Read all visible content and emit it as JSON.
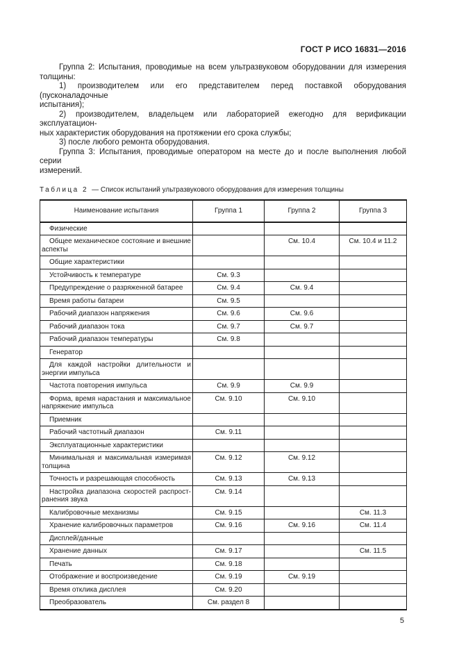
{
  "page": {
    "doc_code": "ГОСТ Р ИСО 16831—2016",
    "page_number": "5"
  },
  "intro": {
    "paragraphs": [
      {
        "lines": [
          {
            "t": "Группа 2: Испытания, проводимые на всем ультразвуковом оборудовании для измерения",
            "indent": true,
            "fill": true
          },
          {
            "t": "толщины:",
            "indent": false,
            "fill": false
          }
        ]
      },
      {
        "lines": [
          {
            "t": "1) производителем или его представителем перед поставкой оборудования (пусконаладочные",
            "indent": true,
            "fill": true
          },
          {
            "t": "испытания);",
            "indent": false,
            "fill": false
          }
        ]
      },
      {
        "lines": [
          {
            "t": "2) производителем, владельцем или лабораторией ежегодно для верификации эксплуатацион-",
            "indent": true,
            "fill": true
          },
          {
            "t": "ных характеристик оборудования на протяжении его срока службы;",
            "indent": false,
            "fill": false
          }
        ]
      },
      {
        "lines": [
          {
            "t": "3) после любого ремонта оборудования.",
            "indent": true,
            "fill": false
          }
        ]
      },
      {
        "lines": [
          {
            "t": "Группа 3: Испытания, проводимые оператором на месте до и после выполнения любой серии",
            "indent": true,
            "fill": true
          },
          {
            "t": "измерений.",
            "indent": false,
            "fill": false
          }
        ]
      }
    ]
  },
  "table": {
    "caption_label": "Таблица 2",
    "caption_text": "— Список испытаний ультразвукового оборудования для измерения толщины",
    "columns": [
      "Наименование испытания",
      "Группа 1",
      "Группа 2",
      "Группа 3"
    ],
    "rows": [
      {
        "name": [
          "Физические"
        ],
        "g1": "",
        "g2": "",
        "g3": ""
      },
      {
        "name": [
          "Общее механическое состояние и внешние",
          "аспекты"
        ],
        "g1": "",
        "g2": "См. 10.4",
        "g3": "См. 10.4 и 11.2"
      },
      {
        "name": [
          "Общие характеристики"
        ],
        "g1": "",
        "g2": "",
        "g3": ""
      },
      {
        "name": [
          "Устойчивость к температуре"
        ],
        "g1": "См. 9.3",
        "g2": "",
        "g3": ""
      },
      {
        "name": [
          "Предупреждение о разряженной батарее"
        ],
        "g1": "См. 9.4",
        "g2": "См. 9.4",
        "g3": ""
      },
      {
        "name": [
          "Время работы батареи"
        ],
        "g1": "См. 9.5",
        "g2": "",
        "g3": ""
      },
      {
        "name": [
          "Рабочий диапазон напряжения"
        ],
        "g1": "См. 9.6",
        "g2": "См. 9.6",
        "g3": ""
      },
      {
        "name": [
          "Рабочий диапазон тока"
        ],
        "g1": "См. 9.7",
        "g2": "См. 9.7",
        "g3": ""
      },
      {
        "name": [
          "Рабочий диапазон температуры"
        ],
        "g1": "См. 9.8",
        "g2": "",
        "g3": ""
      },
      {
        "name": [
          "Генератор"
        ],
        "g1": "",
        "g2": "",
        "g3": ""
      },
      {
        "name": [
          "Для каждой настройки длительности и",
          "энергии импульса"
        ],
        "g1": "",
        "g2": "",
        "g3": ""
      },
      {
        "name": [
          "Частота повторения импульса"
        ],
        "g1": "См. 9.9",
        "g2": "См. 9.9",
        "g3": ""
      },
      {
        "name": [
          "Форма, время нарастания и максимальное",
          "напряжение импульса"
        ],
        "g1": "См. 9.10",
        "g2": "См. 9.10",
        "g3": ""
      },
      {
        "name": [
          "Приемник"
        ],
        "g1": "",
        "g2": "",
        "g3": ""
      },
      {
        "name": [
          "Рабочий частотный диапазон"
        ],
        "g1": "См. 9.11",
        "g2": "",
        "g3": ""
      },
      {
        "name": [
          "Эксплуатационные характеристики"
        ],
        "g1": "",
        "g2": "",
        "g3": ""
      },
      {
        "name": [
          "Минимальная и максимальная измеримая",
          "толщина"
        ],
        "g1": "См. 9.12",
        "g2": "См. 9.12",
        "g3": ""
      },
      {
        "name": [
          "Точность и разрешающая способность"
        ],
        "g1": "См. 9.13",
        "g2": "См. 9.13",
        "g3": ""
      },
      {
        "name": [
          "Настройка диапазона скоростей распрост-",
          "ранения звука"
        ],
        "g1": "См. 9.14",
        "g2": "",
        "g3": ""
      },
      {
        "name": [
          "Калибровочные механизмы"
        ],
        "g1": "См. 9.15",
        "g2": "",
        "g3": "См. 11.3"
      },
      {
        "name": [
          "Хранение калибровочных параметров"
        ],
        "g1": "См. 9.16",
        "g2": "См. 9.16",
        "g3": "См. 11.4"
      },
      {
        "name": [
          "Дисплей/данные"
        ],
        "g1": "",
        "g2": "",
        "g3": ""
      },
      {
        "name": [
          "Хранение данных"
        ],
        "g1": "См. 9.17",
        "g2": "",
        "g3": "См. 11.5"
      },
      {
        "name": [
          "Печать"
        ],
        "g1": "См. 9.18",
        "g2": "",
        "g3": ""
      },
      {
        "name": [
          "Отображение и воспроизведение"
        ],
        "g1": "См. 9.19",
        "g2": "См. 9.19",
        "g3": ""
      },
      {
        "name": [
          "Время отклика дисплея"
        ],
        "g1": "См. 9.20",
        "g2": "",
        "g3": ""
      },
      {
        "name": [
          "Преобразователь"
        ],
        "g1": "См. раздел 8",
        "g2": "",
        "g3": ""
      }
    ]
  }
}
